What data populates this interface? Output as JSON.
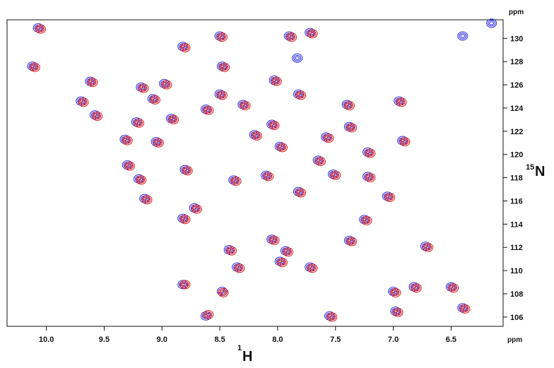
{
  "chart_data": {
    "type": "scatter",
    "title": "",
    "xlabel": {
      "superscript": "1",
      "symbol": "H"
    },
    "ylabel": {
      "superscript": "15",
      "symbol": "N"
    },
    "x_unit": "ppm",
    "y_unit": "ppm",
    "xlim": [
      10.34,
      6.05
    ],
    "ylim": [
      131.6,
      105.2
    ],
    "x_ticks": [
      "10.0",
      "9.5",
      "9.0",
      "8.5",
      "8.0",
      "7.5",
      "7.0",
      "6.5"
    ],
    "x_tick_values": [
      10.0,
      9.5,
      9.0,
      8.5,
      8.0,
      7.5,
      7.0,
      6.5
    ],
    "y_ticks": [
      "106",
      "108",
      "110",
      "112",
      "114",
      "116",
      "118",
      "120",
      "122",
      "124",
      "126",
      "128",
      "130"
    ],
    "y_tick_values": [
      106,
      108,
      110,
      112,
      114,
      116,
      118,
      120,
      122,
      124,
      126,
      128,
      130
    ],
    "grid": false,
    "series": [
      {
        "color": "#2a2ad8",
        "points": [
          [
            8.62,
            106.1
          ],
          [
            8.48,
            108.2
          ],
          [
            8.82,
            108.8
          ],
          [
            8.35,
            110.3
          ],
          [
            7.98,
            110.8
          ],
          [
            7.72,
            110.3
          ],
          [
            7.93,
            111.7
          ],
          [
            7.38,
            112.6
          ],
          [
            8.42,
            111.8
          ],
          [
            8.05,
            112.7
          ],
          [
            8.82,
            114.5
          ],
          [
            9.15,
            116.2
          ],
          [
            8.72,
            115.4
          ],
          [
            9.3,
            119.1
          ],
          [
            9.32,
            121.3
          ],
          [
            9.22,
            122.8
          ],
          [
            9.58,
            123.4
          ],
          [
            9.7,
            124.6
          ],
          [
            9.62,
            126.3
          ],
          [
            10.12,
            127.6
          ],
          [
            10.07,
            130.9
          ],
          [
            8.82,
            129.3
          ],
          [
            8.5,
            130.2
          ],
          [
            8.03,
            126.4
          ],
          [
            8.48,
            127.6
          ],
          [
            8.5,
            125.2
          ],
          [
            7.72,
            130.5
          ],
          [
            7.9,
            130.2
          ],
          [
            7.38,
            122.4
          ],
          [
            7.22,
            120.2
          ],
          [
            7.05,
            116.4
          ],
          [
            6.92,
            121.2
          ],
          [
            6.95,
            124.6
          ],
          [
            6.72,
            112.1
          ],
          [
            6.82,
            108.6
          ],
          [
            7.0,
            108.2
          ],
          [
            6.5,
            108.6
          ],
          [
            6.4,
            106.8
          ],
          [
            6.98,
            106.5
          ],
          [
            7.55,
            106.1
          ],
          [
            6.4,
            130.2
          ],
          [
            6.15,
            131.3
          ],
          [
            9.05,
            121.1
          ],
          [
            8.92,
            123.1
          ],
          [
            8.62,
            123.9
          ],
          [
            8.2,
            121.7
          ],
          [
            8.1,
            118.2
          ],
          [
            8.38,
            117.8
          ],
          [
            7.82,
            116.8
          ],
          [
            7.98,
            120.7
          ],
          [
            7.65,
            119.5
          ],
          [
            7.52,
            118.3
          ],
          [
            7.58,
            121.5
          ],
          [
            8.05,
            122.6
          ],
          [
            8.3,
            124.3
          ],
          [
            8.8,
            118.7
          ],
          [
            8.98,
            126.1
          ],
          [
            9.18,
            125.8
          ],
          [
            9.2,
            117.9
          ],
          [
            9.08,
            124.8
          ],
          [
            7.82,
            125.2
          ],
          [
            7.25,
            114.4
          ],
          [
            7.22,
            118.1
          ],
          [
            7.4,
            124.3
          ],
          [
            7.83,
            128.3
          ]
        ]
      },
      {
        "color": "#dd1a1a",
        "points": [
          [
            8.6,
            106.2
          ],
          [
            8.47,
            108.1
          ],
          [
            8.8,
            108.8
          ],
          [
            8.33,
            110.2
          ],
          [
            7.96,
            110.7
          ],
          [
            7.7,
            110.2
          ],
          [
            7.91,
            111.6
          ],
          [
            7.36,
            112.5
          ],
          [
            8.4,
            111.7
          ],
          [
            8.03,
            112.6
          ],
          [
            8.8,
            114.4
          ],
          [
            9.13,
            116.1
          ],
          [
            8.7,
            115.3
          ],
          [
            9.28,
            119.0
          ],
          [
            9.3,
            121.2
          ],
          [
            9.2,
            122.7
          ],
          [
            9.56,
            123.3
          ],
          [
            9.68,
            124.5
          ],
          [
            9.6,
            126.2
          ],
          [
            10.1,
            127.5
          ],
          [
            10.05,
            130.8
          ],
          [
            8.8,
            129.2
          ],
          [
            8.48,
            130.1
          ],
          [
            8.01,
            126.3
          ],
          [
            8.46,
            127.5
          ],
          [
            8.48,
            125.1
          ],
          [
            7.7,
            130.4
          ],
          [
            7.88,
            130.1
          ],
          [
            7.36,
            122.3
          ],
          [
            7.2,
            120.1
          ],
          [
            7.03,
            116.3
          ],
          [
            6.9,
            121.1
          ],
          [
            6.93,
            124.5
          ],
          [
            6.7,
            112.0
          ],
          [
            6.8,
            108.5
          ],
          [
            6.98,
            108.1
          ],
          [
            6.48,
            108.5
          ],
          [
            6.38,
            106.7
          ],
          [
            6.96,
            106.4
          ],
          [
            7.53,
            106.0
          ],
          [
            9.03,
            121.0
          ],
          [
            8.9,
            123.0
          ],
          [
            8.6,
            123.8
          ],
          [
            8.18,
            121.6
          ],
          [
            8.08,
            118.1
          ],
          [
            8.36,
            117.7
          ],
          [
            7.8,
            116.7
          ],
          [
            7.96,
            120.6
          ],
          [
            7.63,
            119.4
          ],
          [
            7.5,
            118.2
          ],
          [
            7.56,
            121.4
          ],
          [
            8.03,
            122.5
          ],
          [
            8.28,
            124.2
          ],
          [
            8.78,
            118.6
          ],
          [
            8.96,
            126.0
          ],
          [
            9.16,
            125.7
          ],
          [
            9.18,
            117.8
          ],
          [
            9.06,
            124.7
          ],
          [
            7.8,
            125.1
          ],
          [
            7.23,
            114.3
          ],
          [
            7.2,
            118.0
          ],
          [
            7.38,
            124.2
          ]
        ]
      }
    ]
  }
}
